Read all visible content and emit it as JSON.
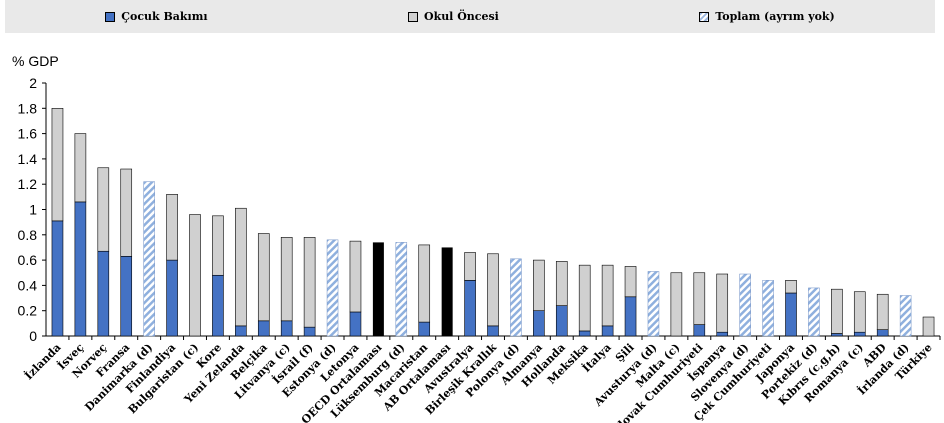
{
  "legend": {
    "childcare": "Çocuk Bakımı",
    "preprimary": "Okul Öncesi",
    "total": "Toplam (ayrım yok)"
  },
  "colors": {
    "childcare": "#4472c4",
    "preprimary": "#d0d0d0",
    "total_hatch": "#9bb7e0",
    "average": "#000000"
  },
  "chart_data": {
    "type": "bar",
    "ylabel": "% GDP",
    "ylim": [
      0,
      2
    ],
    "yticks": [
      "0",
      "0.2",
      "0.4",
      "0.6",
      "0.8",
      "1",
      "1.2",
      "1.4",
      "1.6",
      "1.8",
      "2"
    ],
    "categories": [
      "İzlanda",
      "İsveç",
      "Norveç",
      "Fransa",
      "Danimarka (d)",
      "Finlandiya",
      "Bulgaristan (c)",
      "Kore",
      "Yeni Zelanda",
      "Belçika",
      "Litvanya (c)",
      "İsrail (f)",
      "Estonya (d)",
      "Letonya",
      "OECD Ortalaması",
      "Lüksemburg (d)",
      "Macaristan",
      "AB Ortalaması",
      "Avustralya",
      "Birleşik Krallık",
      "Polonya (d)",
      "Almanya",
      "Hollanda",
      "Meksika",
      "İtalya",
      "Şili",
      "Avusturya (d)",
      "Malta (c)",
      "Slovak Cumhuriyeti",
      "İspanya",
      "Slovenya (d)",
      "Çek Cumhuriyeti",
      "Japonya",
      "Portekiz (d)",
      "Kıbrıs (c,g,h)",
      "Romanya (c)",
      "ABD",
      "İrlanda (d)",
      "Türkiye"
    ],
    "series": [
      {
        "name": "Çocuk Bakımı",
        "values": [
          0.91,
          1.06,
          0.67,
          0.63,
          null,
          0.6,
          0,
          0.48,
          0.08,
          0.12,
          0.12,
          0.07,
          null,
          0.19,
          null,
          null,
          0.11,
          null,
          0.44,
          0.08,
          null,
          0.2,
          0.24,
          0.04,
          0.08,
          0.31,
          null,
          0,
          0.09,
          0.03,
          null,
          null,
          0.34,
          null,
          0.02,
          0.03,
          0.05,
          null,
          0
        ]
      },
      {
        "name": "Okul Öncesi",
        "values": [
          0.89,
          0.54,
          0.66,
          0.69,
          null,
          0.52,
          0.96,
          0.47,
          0.93,
          0.69,
          0.66,
          0.71,
          null,
          0.56,
          null,
          null,
          0.61,
          null,
          0.22,
          0.57,
          null,
          0.4,
          0.35,
          0.52,
          0.48,
          0.24,
          null,
          0.5,
          0.41,
          0.46,
          null,
          null,
          0.1,
          null,
          0.35,
          0.32,
          0.28,
          null,
          0.15
        ]
      },
      {
        "name": "Toplam (ayrım yok)",
        "values": [
          null,
          null,
          null,
          null,
          1.22,
          null,
          null,
          null,
          null,
          null,
          null,
          null,
          0.76,
          null,
          null,
          0.74,
          null,
          null,
          null,
          null,
          0.61,
          null,
          null,
          null,
          null,
          null,
          0.51,
          null,
          null,
          null,
          0.49,
          0.44,
          null,
          0.38,
          null,
          null,
          null,
          0.32,
          null
        ]
      }
    ],
    "averages": {
      "OECD Ortalaması": 0.74,
      "AB Ortalaması": 0.7
    },
    "grid": false,
    "legend_position": "top"
  }
}
